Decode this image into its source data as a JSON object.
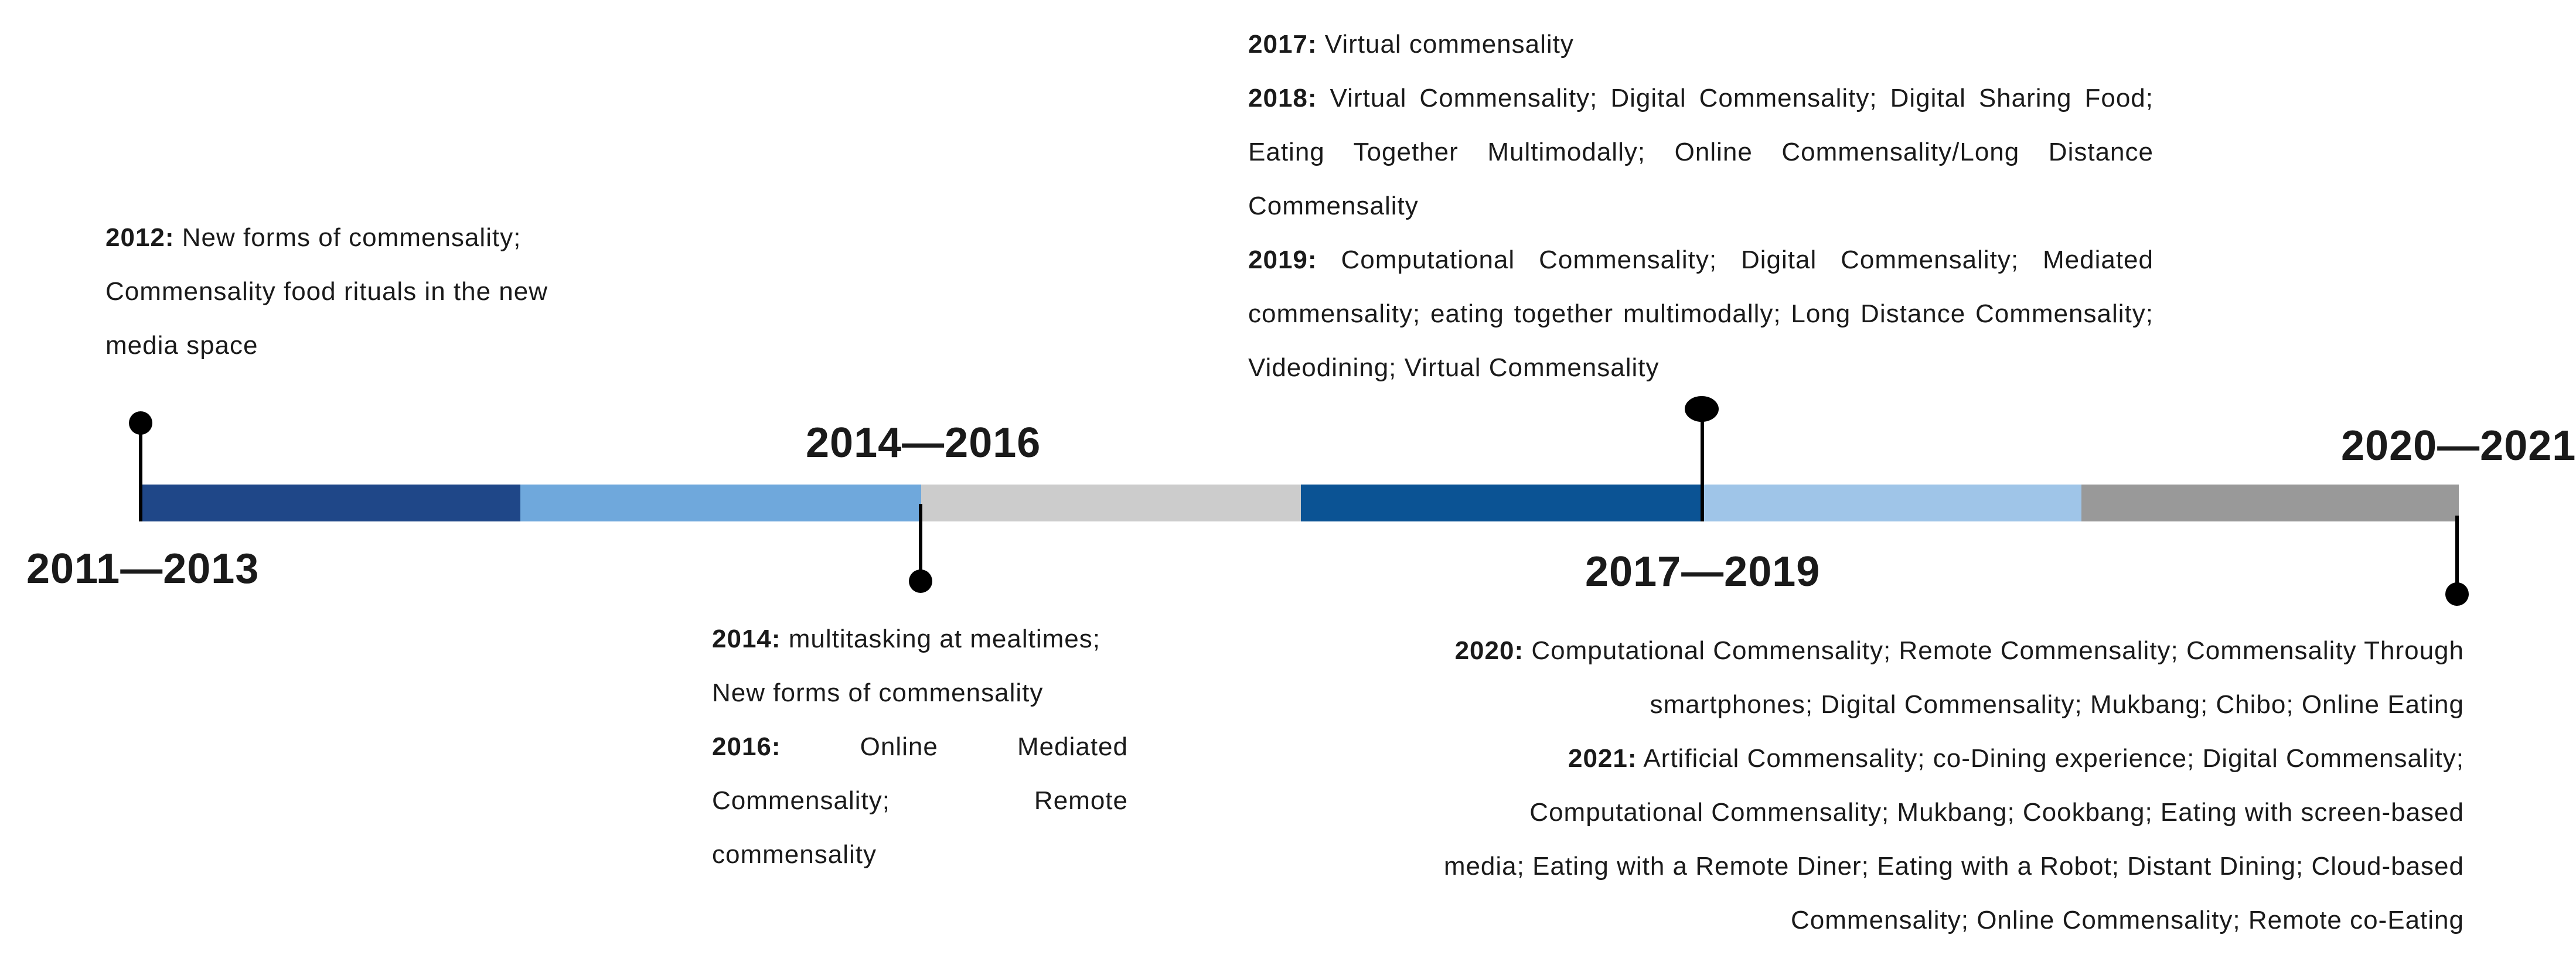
{
  "timeline": {
    "segment_colors": [
      "#1f4788",
      "#6fa8dc",
      "#cccccc",
      "#0b5394",
      "#9fc5e8",
      "#999999"
    ]
  },
  "periods": {
    "p1": "2011—2013",
    "p2": "2014—2016",
    "p3": "2017—2019",
    "p4": "2020—2021"
  },
  "notes": {
    "y2012": {
      "year": "2012:",
      "text": " New forms of commensality; Commensality food rituals in the new media space"
    },
    "y2014": {
      "year": "2014:",
      "text": " multitasking at mealtimes; New forms of commensality"
    },
    "y2016": {
      "year": "2016:",
      "text": " Online Mediated Commensality; Remote commensality"
    },
    "y2017": {
      "year": "2017:",
      "text": " Virtual commensality"
    },
    "y2018": {
      "year": "2018:",
      "text": " Virtual Commensality; Digital Commensality; Digital Sharing Food; Eating Together Multimodally; Online Commensality/Long Distance Commensality"
    },
    "y2019": {
      "year": "2019:",
      "text": " Computational Commensality; Digital Commensality; Mediated commensality; eating together multimodally; Long Distance Commensality; Videodining; Virtual Commensality"
    },
    "y2020": {
      "year": "2020:",
      "text": " Computational Commensality; Remote Commensality; Commensality Through smartphones; Digital Commensality; Mukbang; Chibo; Online Eating"
    },
    "y2021": {
      "year": "2021:",
      "text": " Artificial Commensality; co-Dining experience; Digital Commensality; Computational Commensality; Mukbang; Cookbang; Eating with screen-based media; Eating with a Remote Diner; Eating with a Robot; Distant Dining; Cloud-based Commensality; Online Commensality; Remote co-Eating"
    }
  }
}
